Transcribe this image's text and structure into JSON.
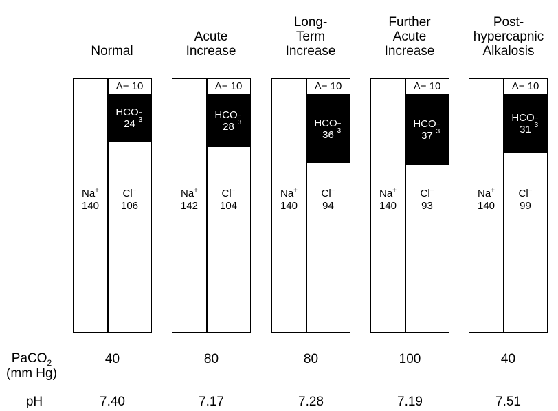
{
  "columns": [
    {
      "title": "Normal",
      "a_label": "A− 10",
      "hco3": "24",
      "na": "140",
      "cl": "106",
      "paco2": "40",
      "ph": "7.40"
    },
    {
      "title": "Acute\nIncrease",
      "a_label": "A− 10",
      "hco3": "28",
      "na": "142",
      "cl": "104",
      "paco2": "80",
      "ph": "7.17"
    },
    {
      "title": "Long-\nTerm\nIncrease",
      "a_label": "A− 10",
      "hco3": "36",
      "na": "140",
      "cl": "94",
      "paco2": "80",
      "ph": "7.28"
    },
    {
      "title": "Further\nAcute\nIncrease",
      "a_label": "A− 10",
      "hco3": "37",
      "na": "140",
      "cl": "93",
      "paco2": "100",
      "ph": "7.19"
    },
    {
      "title": "Post-\nhypercapnic\nAlkalosis",
      "a_label": "A− 10",
      "hco3": "31",
      "na": "140",
      "cl": "99",
      "paco2": "40",
      "ph": "7.51"
    }
  ],
  "ions": {
    "na": "Na",
    "na_charge": "+",
    "cl": "Cl",
    "cl_charge": "−",
    "hco3": "HCO",
    "hco3_sub": "3",
    "hco3_charge": "−"
  },
  "rows": {
    "paco2_label": "PaCO",
    "paco2_sub": "2",
    "paco2_unit": "(mm Hg)",
    "ph_label": "pH"
  }
}
